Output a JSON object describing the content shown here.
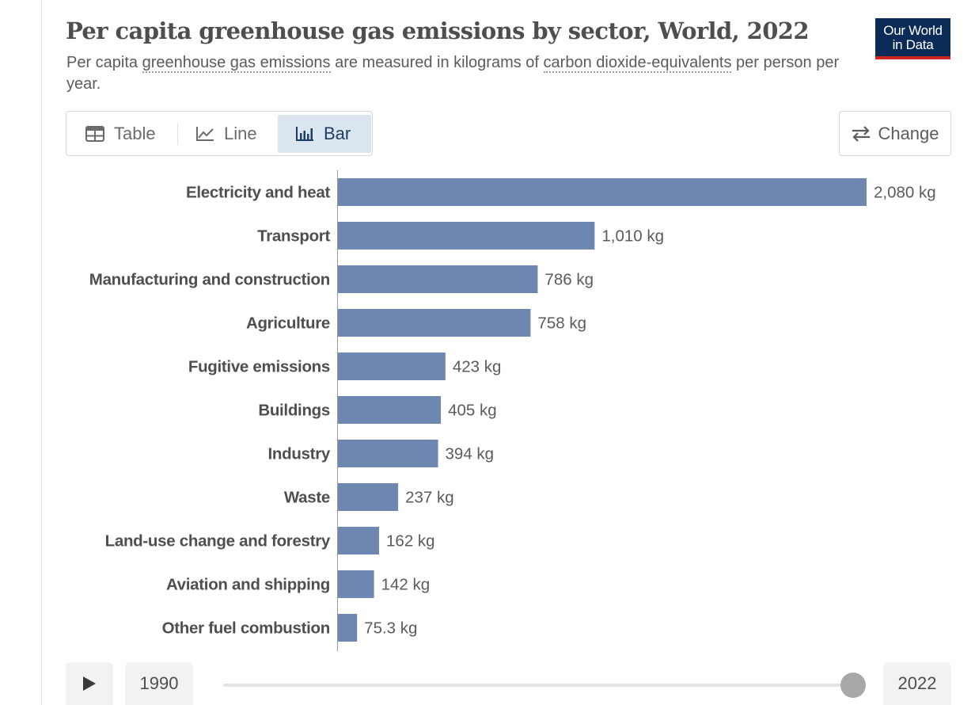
{
  "header": {
    "title": "Per capita greenhouse gas emissions by sector, World, 2022",
    "subtitle_pre": "Per capita ",
    "subtitle_link1": "greenhouse gas emissions",
    "subtitle_mid": " are measured in kilograms of ",
    "subtitle_link2": "carbon dioxide-equivalents",
    "subtitle_post": " per person per year.",
    "logo_line1": "Our World",
    "logo_line2": "in Data"
  },
  "tabs": [
    {
      "label": "Table",
      "icon": "table-icon",
      "active": false
    },
    {
      "label": "Line",
      "icon": "line-chart-icon",
      "active": false
    },
    {
      "label": "Bar",
      "icon": "bar-chart-icon",
      "active": true
    }
  ],
  "change_button": {
    "label": "Change",
    "icon": "swap-arrows-icon"
  },
  "colors": {
    "bar": "#6d87b0",
    "label": "#4e4e4e",
    "value": "#5b5b5b",
    "accent_logo": "#0a2a57",
    "logo_stripe": "#ce261e"
  },
  "chart_data": {
    "type": "bar",
    "orientation": "horizontal",
    "unit": "kg",
    "categories": [
      "Electricity and heat",
      "Transport",
      "Manufacturing and construction",
      "Agriculture",
      "Fugitive emissions",
      "Buildings",
      "Industry",
      "Waste",
      "Land-use change and forestry",
      "Aviation and shipping",
      "Other fuel combustion"
    ],
    "values": [
      2080,
      1010,
      786,
      758,
      423,
      405,
      394,
      237,
      162,
      142,
      75.3
    ],
    "value_labels": [
      "2,080 kg",
      "1,010 kg",
      "786 kg",
      "758 kg",
      "423 kg",
      "405 kg",
      "394 kg",
      "237 kg",
      "162 kg",
      "142 kg",
      "75.3 kg"
    ],
    "xlim": [
      0,
      2080
    ],
    "legend": "none"
  },
  "timeline": {
    "start_year": "1990",
    "end_year": "2022",
    "play_icon": "play-icon",
    "position": 1.0
  }
}
